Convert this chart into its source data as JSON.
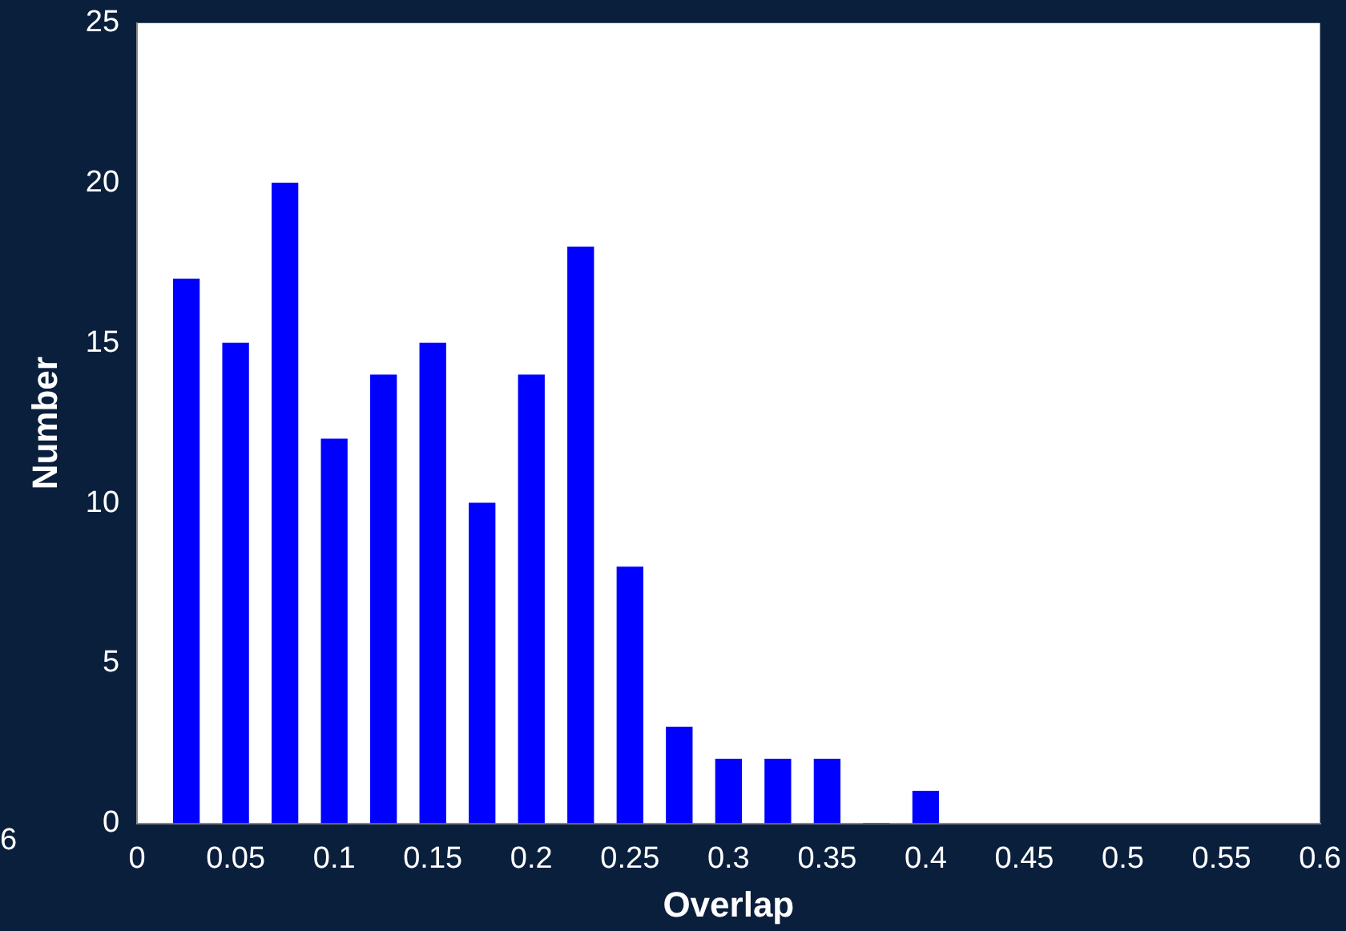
{
  "chart_data": {
    "type": "bar",
    "xlabel": "Overlap",
    "ylabel": "Number",
    "x": [
      0.025,
      0.05,
      0.075,
      0.1,
      0.125,
      0.15,
      0.175,
      0.2,
      0.225,
      0.25,
      0.275,
      0.3,
      0.325,
      0.35,
      0.375,
      0.4
    ],
    "values": [
      17,
      15,
      20,
      12,
      14,
      15,
      10,
      14,
      18,
      8,
      3,
      2,
      2,
      2,
      0,
      1
    ],
    "color": "#0000ff",
    "xlim": [
      0,
      0.6
    ],
    "xticks": [
      0,
      0.05,
      0.1,
      0.15,
      0.2,
      0.25,
      0.3,
      0.35,
      0.4,
      0.45,
      0.5,
      0.55,
      0.6
    ],
    "ylim": [
      0,
      25
    ],
    "yticks": [
      0,
      5,
      10,
      15,
      20,
      25
    ],
    "grid": false,
    "legend": false,
    "annotations": [
      "6"
    ]
  }
}
